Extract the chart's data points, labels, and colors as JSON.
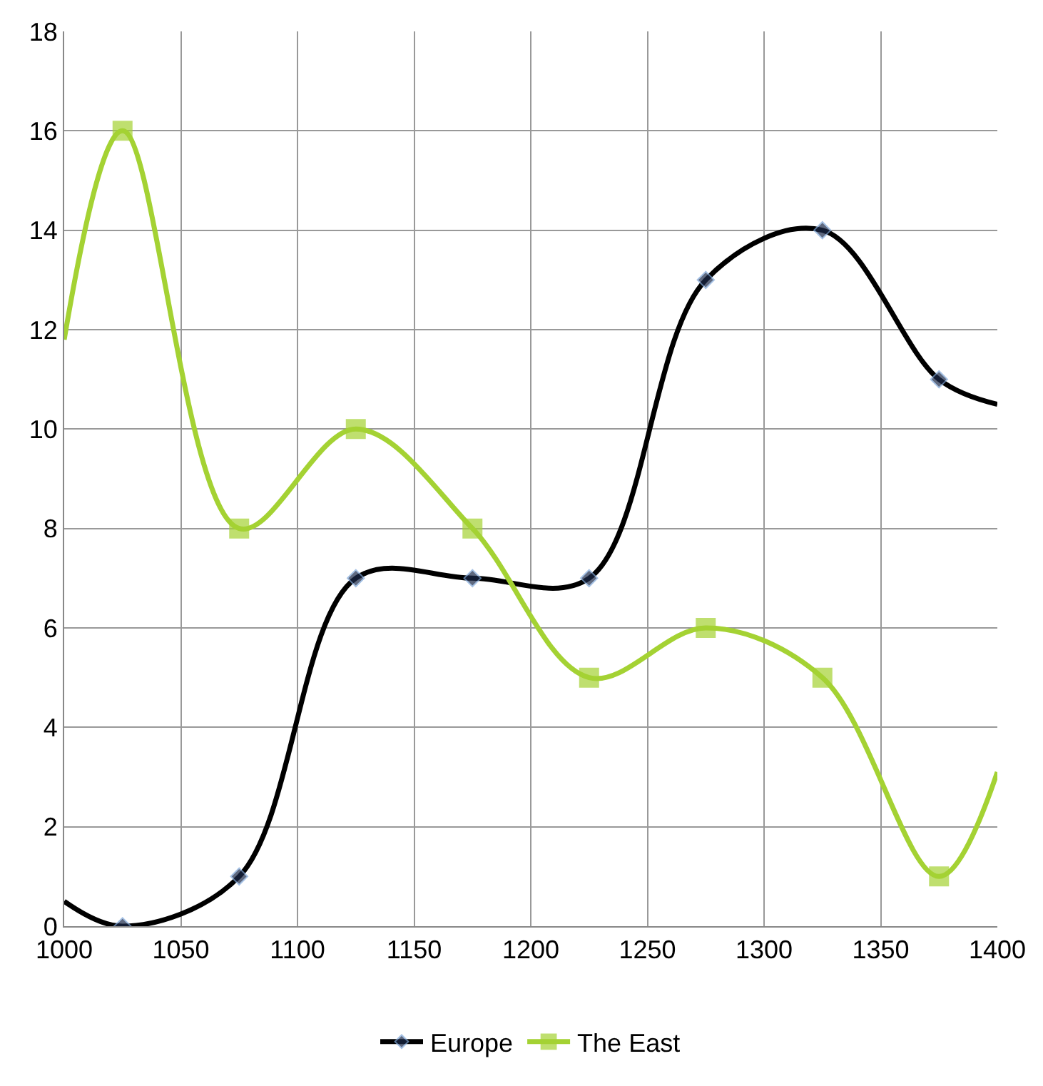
{
  "chart_data": {
    "type": "line",
    "x": [
      1000,
      1025,
      1075,
      1125,
      1175,
      1225,
      1275,
      1325,
      1375,
      1400
    ],
    "series": [
      {
        "name": "Europe",
        "color": "#000000",
        "marker": "diamond",
        "values": [
          0.5,
          0,
          1,
          7,
          7,
          7,
          13,
          14,
          11,
          10.5
        ]
      },
      {
        "name": "The East",
        "color": "#a4d233",
        "marker": "square",
        "values": [
          11.8,
          16,
          8,
          10,
          8,
          5,
          6,
          5,
          1,
          3.1
        ]
      }
    ],
    "xlim": [
      1000,
      1400
    ],
    "xticks": [
      1000,
      1050,
      1100,
      1150,
      1200,
      1250,
      1300,
      1350,
      1400
    ],
    "ylim": [
      0,
      18
    ],
    "yticks": [
      0,
      2,
      4,
      6,
      8,
      10,
      12,
      14,
      16,
      18
    ],
    "grid": true,
    "legend": "bottom",
    "line_style": "solid"
  }
}
